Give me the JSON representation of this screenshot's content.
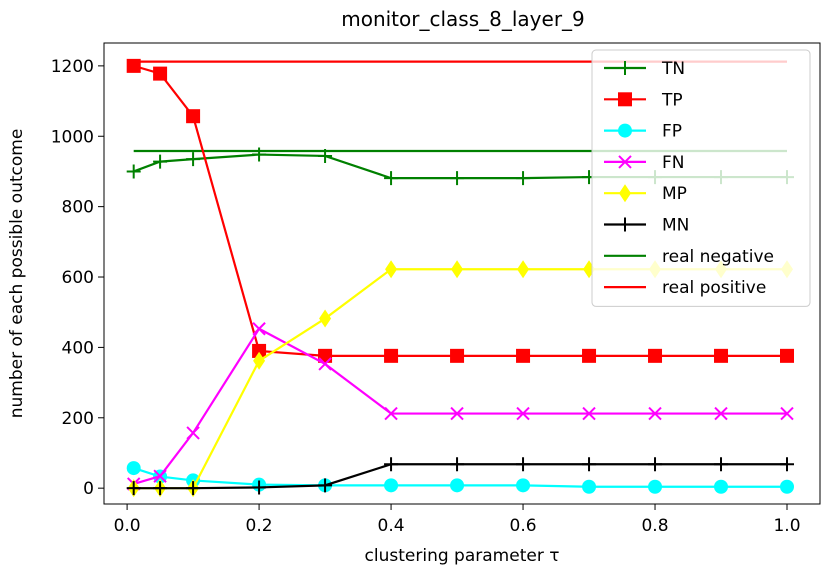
{
  "chart_data": {
    "type": "line",
    "title": "monitor_class_8_layer_9",
    "xlabel": "clustering parameter τ",
    "ylabel": "number of each possible outcome",
    "xlim": [
      -0.035,
      1.05
    ],
    "ylim": [
      -45,
      1265
    ],
    "xticks": [
      0.0,
      0.2,
      0.4,
      0.6,
      0.8,
      1.0
    ],
    "xtick_labels": [
      "0.0",
      "0.2",
      "0.4",
      "0.6",
      "0.8",
      "1.0"
    ],
    "yticks": [
      0,
      200,
      400,
      600,
      800,
      1000,
      1200
    ],
    "ytick_labels": [
      "0",
      "200",
      "400",
      "600",
      "800",
      "1000",
      "1200"
    ],
    "grid": false,
    "legend_position": "top-right",
    "x": [
      0.01,
      0.05,
      0.1,
      0.2,
      0.3,
      0.4,
      0.5,
      0.6,
      0.7,
      0.8,
      0.9,
      1.0
    ],
    "series": [
      {
        "name": "TN",
        "color": "#008000",
        "marker": "plus",
        "values": [
          900,
          928,
          935,
          948,
          944,
          881,
          881,
          881,
          884,
          884,
          884,
          884
        ]
      },
      {
        "name": "TP",
        "color": "#ff0000",
        "marker": "square",
        "values": [
          1200,
          1178,
          1057,
          390,
          376,
          376,
          376,
          376,
          376,
          376,
          376,
          376
        ]
      },
      {
        "name": "FP",
        "color": "#00ffff",
        "marker": "circle",
        "values": [
          57,
          33,
          22,
          10,
          8,
          8,
          8,
          8,
          4,
          4,
          4,
          4
        ]
      },
      {
        "name": "FN",
        "color": "#ff00ff",
        "marker": "x",
        "values": [
          12,
          34,
          157,
          453,
          353,
          212,
          212,
          212,
          212,
          212,
          212,
          212
        ]
      },
      {
        "name": "MP",
        "color": "#ffff00",
        "marker": "diamond",
        "values": [
          0,
          0,
          0,
          362,
          482,
          622,
          622,
          622,
          622,
          622,
          622,
          622
        ]
      },
      {
        "name": "MN",
        "color": "#000000",
        "marker": "plus",
        "values": [
          0,
          0,
          0,
          2,
          8,
          68,
          68,
          68,
          68,
          68,
          68,
          68
        ]
      }
    ],
    "reference_lines": [
      {
        "name": "real negative",
        "color": "#008000",
        "y": 958,
        "x_range": [
          0.01,
          1.0
        ]
      },
      {
        "name": "real positive",
        "color": "#ff0000",
        "y": 1212,
        "x_range": [
          0.01,
          1.0
        ]
      }
    ]
  }
}
